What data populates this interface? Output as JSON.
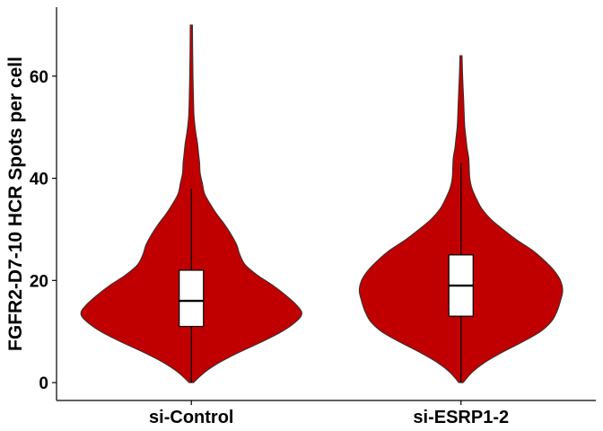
{
  "chart_data": {
    "type": "violin",
    "title": "",
    "xlabel": "",
    "ylabel": "FGFR2-D7-10 HCR Spots per cell",
    "categories": [
      "si-Control",
      "si-ESRP1-2"
    ],
    "ylim": [
      -3.5,
      73.5
    ],
    "yticks": [
      0,
      20,
      40,
      60
    ],
    "grid": false,
    "legend": "none",
    "colors": {
      "violin_fill": "#C00000",
      "violin_stroke": "#333333",
      "box_fill": "#ffffff",
      "box_stroke": "#000000",
      "axis": "#000000"
    },
    "series": [
      {
        "category": "si-Control",
        "box": {
          "min": 0,
          "q1": 11,
          "median": 16,
          "q3": 22,
          "max": 38
        },
        "range": [
          0,
          70
        ],
        "density": [
          [
            0,
            0.02
          ],
          [
            2,
            0.12
          ],
          [
            4,
            0.26
          ],
          [
            6,
            0.44
          ],
          [
            8,
            0.64
          ],
          [
            10,
            0.82
          ],
          [
            12,
            0.95
          ],
          [
            13.5,
            1.0
          ],
          [
            15,
            0.96
          ],
          [
            17,
            0.86
          ],
          [
            19,
            0.74
          ],
          [
            21,
            0.6
          ],
          [
            23,
            0.49
          ],
          [
            25,
            0.44
          ],
          [
            27,
            0.41
          ],
          [
            29,
            0.36
          ],
          [
            31,
            0.3
          ],
          [
            33,
            0.23
          ],
          [
            35,
            0.17
          ],
          [
            37,
            0.12
          ],
          [
            39,
            0.1
          ],
          [
            41,
            0.08
          ],
          [
            43,
            0.075
          ],
          [
            45,
            0.065
          ],
          [
            47,
            0.055
          ],
          [
            49,
            0.04
          ],
          [
            52,
            0.025
          ],
          [
            55,
            0.02
          ],
          [
            60,
            0.015
          ],
          [
            65,
            0.012
          ],
          [
            70,
            0.01
          ]
        ]
      },
      {
        "category": "si-ESRP1-2",
        "box": {
          "min": 0,
          "q1": 13,
          "median": 19,
          "q3": 25,
          "max": 43
        },
        "range": [
          0,
          64
        ],
        "density": [
          [
            0,
            0.02
          ],
          [
            2,
            0.1
          ],
          [
            4,
            0.22
          ],
          [
            6,
            0.38
          ],
          [
            8,
            0.56
          ],
          [
            10,
            0.72
          ],
          [
            12,
            0.82
          ],
          [
            14,
            0.87
          ],
          [
            16,
            0.9
          ],
          [
            18,
            0.92
          ],
          [
            20,
            0.9
          ],
          [
            22,
            0.84
          ],
          [
            24,
            0.75
          ],
          [
            26,
            0.64
          ],
          [
            28,
            0.5
          ],
          [
            30,
            0.38
          ],
          [
            32,
            0.27
          ],
          [
            34,
            0.19
          ],
          [
            36,
            0.14
          ],
          [
            38,
            0.1
          ],
          [
            40,
            0.08
          ],
          [
            42,
            0.075
          ],
          [
            44,
            0.07
          ],
          [
            46,
            0.055
          ],
          [
            48,
            0.045
          ],
          [
            50,
            0.035
          ],
          [
            52,
            0.03
          ],
          [
            55,
            0.025
          ],
          [
            60,
            0.015
          ],
          [
            64,
            0.01
          ]
        ]
      }
    ]
  }
}
